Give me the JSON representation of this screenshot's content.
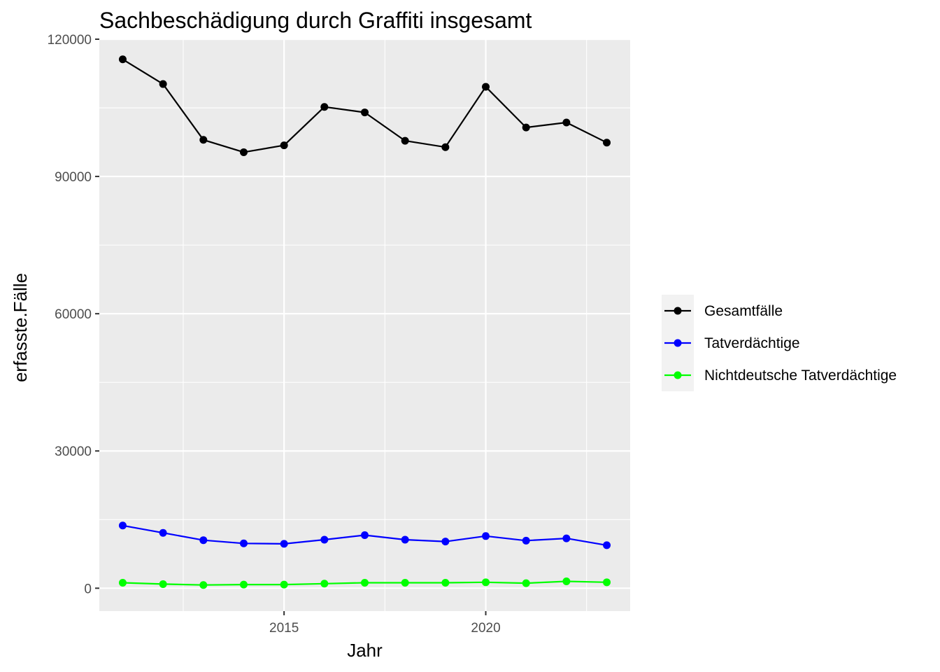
{
  "chart_data": {
    "type": "line",
    "title": "Sachbeschädigung durch Graffiti insgesamt",
    "xlabel": "Jahr",
    "ylabel": "erfasste.Fälle",
    "x": [
      2011,
      2012,
      2013,
      2014,
      2015,
      2016,
      2017,
      2018,
      2019,
      2020,
      2021,
      2022,
      2023
    ],
    "xlim": [
      2010.42,
      2023.58
    ],
    "ylim": [
      -5000,
      120000
    ],
    "x_ticks": [
      2015,
      2020
    ],
    "y_ticks": [
      0,
      30000,
      60000,
      90000,
      120000
    ],
    "x_tick_labels": [
      "2015",
      "2020"
    ],
    "y_tick_labels": [
      "0",
      "30000",
      "60000",
      "90000",
      "120000"
    ],
    "grid": true,
    "legend_position": "right",
    "series": [
      {
        "name": "Gesamtfälle",
        "color": "#000000",
        "values": [
          115600,
          110200,
          98000,
          95300,
          96800,
          105200,
          104000,
          97800,
          96400,
          109600,
          100700,
          101800,
          97400
        ]
      },
      {
        "name": "Tatverdächtige",
        "color": "#0000ff",
        "values": [
          13700,
          12100,
          10500,
          9800,
          9700,
          10600,
          11600,
          10600,
          10200,
          11400,
          10400,
          10900,
          9400
        ]
      },
      {
        "name": "Nichtdeutsche Tatverdächtige",
        "color": "#00ff00",
        "values": [
          1200,
          900,
          700,
          800,
          800,
          1000,
          1200,
          1200,
          1200,
          1300,
          1100,
          1500,
          1300
        ]
      }
    ]
  }
}
